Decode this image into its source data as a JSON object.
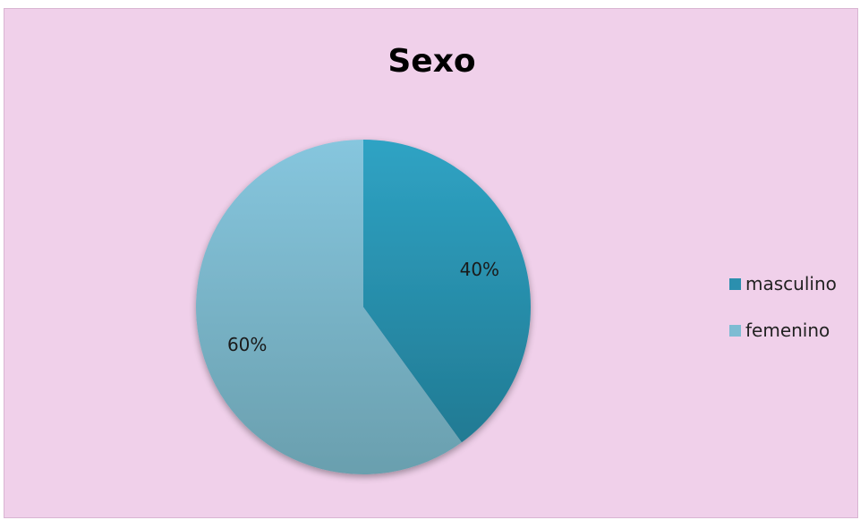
{
  "chart_data": {
    "type": "pie",
    "title": "Sexo",
    "categories": [
      "masculino",
      "femenino"
    ],
    "values": [
      40,
      60
    ],
    "data_labels": [
      "40%",
      "60%"
    ],
    "colors": [
      "#2b8fae",
      "#7dbcd3"
    ],
    "legend_position": "right",
    "background_color": "#f0d0ea"
  }
}
